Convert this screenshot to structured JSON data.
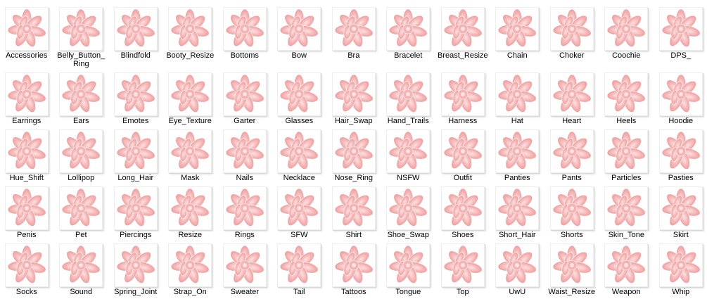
{
  "items": [
    "Accessories",
    "Belly_Button_Ring",
    "Blindfold",
    "Booty_Resize",
    "Bottoms",
    "Bow",
    "Bra",
    "Bracelet",
    "Breast_Resize",
    "Chain",
    "Choker",
    "Coochie",
    "DPS_",
    "Earrings",
    "Ears",
    "Emotes",
    "Eye_Texture",
    "Garter",
    "Glasses",
    "Hair_Swap",
    "Hand_Trails",
    "Harness",
    "Hat",
    "Heart",
    "Heels",
    "Hoodie",
    "Hue_Shift",
    "Lollipop",
    "Long_Hair",
    "Mask",
    "Nails",
    "Necklace",
    "Nose_Ring",
    "NSFW",
    "Outfit",
    "Panties",
    "Pants",
    "Particles",
    "Pasties",
    "Penis",
    "Pet",
    "Piercings",
    "Resize",
    "Rings",
    "SFW",
    "Shirt",
    "Shoe_Swap",
    "Shoes",
    "Short_Hair",
    "Shorts",
    "Skin_Tone",
    "Skirt",
    "Socks",
    "Sound",
    "Spring_Joint",
    "Strap_On",
    "Sweater",
    "Tail",
    "Tattoos",
    "Tongue",
    "Top",
    "UwU",
    "Waist_Resize",
    "Weapon",
    "Whip"
  ]
}
